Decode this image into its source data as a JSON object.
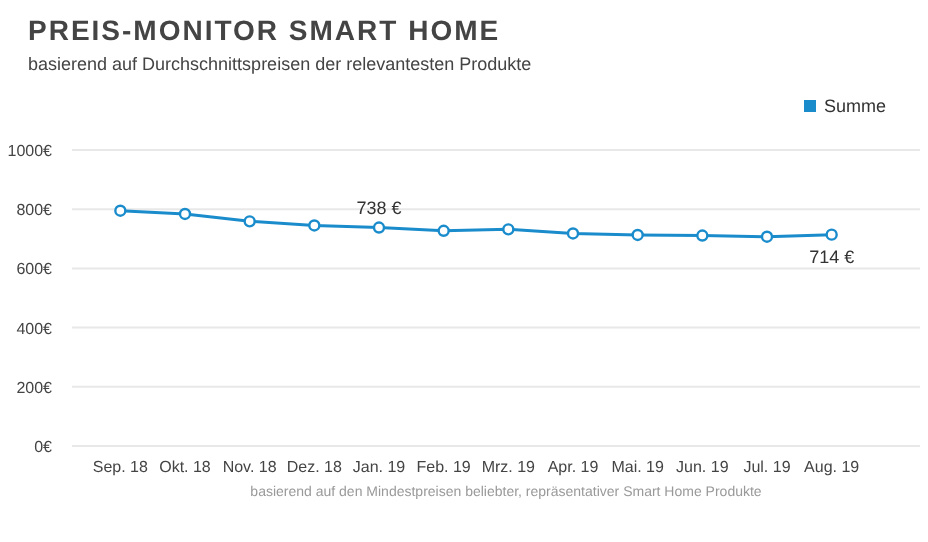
{
  "chart_data": {
    "type": "line",
    "title": "PREIS-MONITOR SMART HOME",
    "subtitle": "basierend auf Durchschnittspreisen der relevantesten Produkte",
    "annotations": [
      "basierend auf den Mindestpreisen beliebter, repräsentativer Smart Home Produkte"
    ],
    "categories": [
      "Sep. 18",
      "Okt. 18",
      "Nov. 18",
      "Dez. 18",
      "Jan. 19",
      "Feb. 19",
      "Mrz. 19",
      "Apr. 19",
      "Mai. 19",
      "Jun. 19",
      "Jul. 19",
      "Aug. 19"
    ],
    "series": [
      {
        "name": "Summe",
        "color": "#1a8ccc",
        "values": [
          795,
          784,
          759,
          745,
          738,
          727,
          732,
          718,
          713,
          711,
          707,
          714
        ],
        "value_labels": [
          null,
          null,
          null,
          null,
          "738 €",
          null,
          null,
          null,
          null,
          null,
          null,
          "714 €"
        ]
      }
    ],
    "ylim": [
      0,
      1000
    ],
    "yticks": [
      {
        "value": 0,
        "label": "0€"
      },
      {
        "value": 200,
        "label": "200€"
      },
      {
        "value": 400,
        "label": "400€"
      },
      {
        "value": 600,
        "label": "600€"
      },
      {
        "value": 800,
        "label": "800€"
      },
      {
        "value": 1000,
        "label": "1000€"
      }
    ],
    "grid": "y",
    "legend": "top right",
    "marker": "circle"
  }
}
